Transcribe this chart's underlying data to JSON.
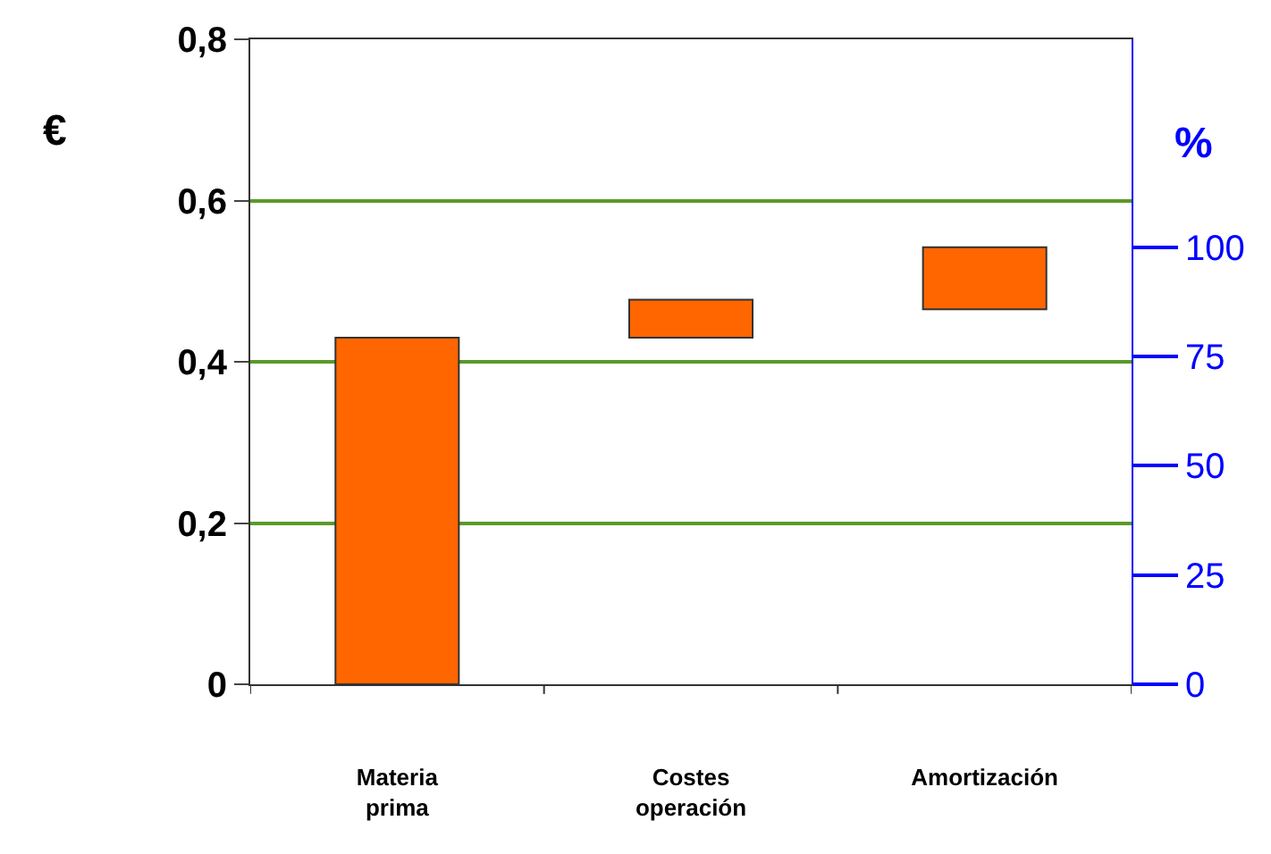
{
  "chart_data": {
    "type": "bar",
    "categories": [
      "Materia prima",
      "Costes operación",
      "Amortización"
    ],
    "values": [
      0.43,
      0.047,
      0.077
    ],
    "base": [
      0,
      0.43,
      0.465
    ],
    "color": "#ff6600",
    "ylabel": "€",
    "y2label": "%",
    "ylim": [
      0,
      0.8
    ],
    "yticks": [
      {
        "value": 0,
        "label": "0"
      },
      {
        "value": 0.2,
        "label": "0,2"
      },
      {
        "value": 0.4,
        "label": "0,4"
      },
      {
        "value": 0.6,
        "label": "0,6"
      },
      {
        "value": 0.8,
        "label": "0,8"
      }
    ],
    "y2lim": [
      0,
      147.6
    ],
    "y2ticks": [
      0,
      25,
      50,
      75,
      100
    ],
    "grid": "y"
  }
}
